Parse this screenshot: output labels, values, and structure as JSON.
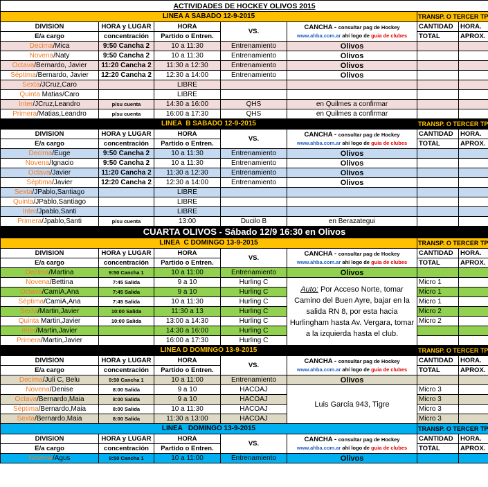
{
  "title": "ACTIVIDADES DE HOCKEY OLIVOS 2015",
  "colors": {
    "yellow": "#ffc000",
    "black": "#000000",
    "pink": "#f2dcdb",
    "blue": "#c5d9f1",
    "green": "#92d050",
    "tan": "#ddd9c4",
    "cyan": "#00b0f0",
    "division_orange": "#f07b25"
  },
  "header": {
    "division": "DIVISION",
    "ea_cargo": "E/a cargo",
    "hora_lugar": "HORA y LUGAR",
    "concentracion": "concentración",
    "hora": "HORA",
    "partido": "Partido o Entren.",
    "vs": "VS.",
    "cancha": "CANCHA - ",
    "consultar": "consultar pag de Hockey",
    "url": "www.ahba.com.ar",
    "ahi_logo": " ahí logo de ",
    "guia": "guia de clubes",
    "cantidad": "CANTIDAD",
    "total": "TOTAL",
    "hora2": "HORA.",
    "aprox": "APROX."
  },
  "transp_label": "TRANSP. O TERCER TPO",
  "cuarta": "CUARTA OLIVOS - Sábado 12/9 16:30 en Olivos",
  "sections": [
    {
      "title": "LINEA A SABADO 12-9-2015",
      "bar": "yellow",
      "alt": "pink",
      "rows": [
        {
          "div": "Decima",
          "rest": "/Mica",
          "conc": "9:50 Cancha 2",
          "hora": "10 a 11:30",
          "vs": "Entrenamiento",
          "cancha": "Olivos",
          "cant": ""
        },
        {
          "div": "Novena",
          "rest": "/Naty",
          "conc": "9:50 Cancha 2",
          "hora": "10 a 11:30",
          "vs": "Entrenamiento",
          "cancha": "Olivos",
          "cant": ""
        },
        {
          "div": "Octava",
          "rest": "/Bernardo, Javier",
          "conc": "11:20 Cancha 2",
          "hora": "11:30 a 12:30",
          "vs": "Entrenamiento",
          "cancha": "Olivos",
          "cant": ""
        },
        {
          "div": "Séptima",
          "rest": "/Bernardo, Javier",
          "conc": "12:20 Cancha 2",
          "hora": "12:30 a 14:00",
          "vs": "Entrenamiento",
          "cancha": "Olivos",
          "cant": ""
        },
        {
          "div": "Sexta",
          "rest": "/JCruz,Caro",
          "conc": "",
          "hora": "LIBRE",
          "vs": "",
          "cancha": "",
          "cant": ""
        },
        {
          "div": "Quinta",
          "rest": " Matias/Caro",
          "conc": "",
          "hora": "LIBRE",
          "vs": "",
          "cancha": "",
          "cant": ""
        },
        {
          "div": "Inter",
          "rest": "/JCruz,Leandro",
          "conc": "p/su cuenta",
          "hora": "14:30 a 16:00",
          "vs": "QHS",
          "cancha": "en Quilmes a confirmar",
          "cant": ""
        },
        {
          "div": "Primera",
          "rest": "/Matias,Leandro",
          "conc": "p/su cuenta",
          "hora": "16:00 a 17:30",
          "vs": "QHS",
          "cancha": "en Quilmes a confirmar",
          "cant": ""
        }
      ]
    },
    {
      "title": "LINEA  B SABADO 12-9-2015",
      "bar": "black",
      "alt": "blue",
      "rows": [
        {
          "div": "Decima",
          "rest": "/Euge",
          "conc": "9:50 Cancha 2",
          "hora": "10 a 11:30",
          "vs": "Entrenamiento",
          "cancha": "Olivos",
          "cant": ""
        },
        {
          "div": "Novena",
          "rest": "/Ignacio",
          "conc": "9:50 Cancha 2",
          "hora": "10 a 11:30",
          "vs": "Entrenamiento",
          "cancha": "Olivos",
          "cant": ""
        },
        {
          "div": "Octava",
          "rest": "/Javier",
          "conc": "11:20 Cancha 2",
          "hora": "11:30 a 12:30",
          "vs": "Entrenamiento",
          "cancha": "Olivos",
          "cant": ""
        },
        {
          "div": "Séptima",
          "rest": "/Javier",
          "conc": "12:20 Cancha 2",
          "hora": "12:30 a 14:00",
          "vs": "Entrenamiento",
          "cancha": "Olivos",
          "cant": ""
        },
        {
          "div": "Sexta",
          "rest": "/JPablo,Santiago",
          "conc": "",
          "hora": "LIBRE",
          "vs": "",
          "cancha": "",
          "cant": ""
        },
        {
          "div": "Quinta",
          "rest": "/JPablo,Santiago",
          "conc": "",
          "hora": "LIBRE",
          "vs": "",
          "cancha": "",
          "cant": ""
        },
        {
          "div": "Inter",
          "rest": "/Jpablo,Santi",
          "conc": "",
          "hora": "LIBRE",
          "vs": "",
          "cancha": "",
          "cant": ""
        },
        {
          "div": "Primera",
          "rest": "/Jpablo,Santi",
          "conc": "p/su cuenta",
          "hora": "13:00",
          "vs": "Ducilo B",
          "cancha": "en Berazategui",
          "cant": ""
        }
      ]
    },
    {
      "title": "LINEA  C DOMINGO 13-9-2015",
      "bar": "yellow",
      "alt": "green",
      "small_conc": true,
      "merged": {
        "start": 1,
        "span": 7,
        "auto": "Auto:",
        "text": " Por Acceso Norte, tomar Camino del Buen Ayre, bajar en la salida RN 8, por esta hacia Hurlingham hasta Av. Vergara, tomar a la izquierda hasta el club."
      },
      "rows": [
        {
          "div": "Decima",
          "rest": "/Martina",
          "conc": "9:50 Cancha 1",
          "hora": "10 a 11:00",
          "vs": "Entrenamiento",
          "cancha": "Olivos",
          "cant": ""
        },
        {
          "div": "Novena",
          "rest": "/Bettina",
          "conc": "7:45 Salida",
          "hora": "9 a 10",
          "vs": "Hurling C",
          "cant": "Micro 1"
        },
        {
          "div": "Octava",
          "rest": "/CamiA,Ana",
          "conc": "7:45 Salida",
          "hora": "9 a 10",
          "vs": "Hurling C",
          "cant": "Micro 1"
        },
        {
          "div": "Séptima",
          "rest": "/CamiA,Ana",
          "conc": "7:45 Salida",
          "hora": "10 a 11:30",
          "vs": "Hurling C",
          "cant": "Micro 1"
        },
        {
          "div": "Sexta",
          "rest": "/Martin,Javier",
          "conc": "10:00 Salida",
          "hora": "11:30 a 13",
          "vs": "Hurling C",
          "cant": "Micro 2"
        },
        {
          "div": "Quinta",
          "rest": " Martin,Javier",
          "conc": "10:00 Salida",
          "hora": "13:00 a 14:30",
          "vs": "Hurling C",
          "cant": "Micro 2"
        },
        {
          "div": "Inter",
          "rest": "/Martin,Javier",
          "conc": "",
          "hora": "14:30 a 16:00",
          "vs": "Hurling C",
          "cant": ""
        },
        {
          "div": "Primera",
          "rest": "/Martin,Javier",
          "conc": "",
          "hora": "16:00 a 17:30",
          "vs": "Hurling C",
          "cant": ""
        }
      ]
    },
    {
      "title": "LINEA D DOMINGO 13-9-2015",
      "bar": "black",
      "alt": "tan",
      "small_conc": true,
      "merged": {
        "start": 1,
        "span": 4,
        "auto": "",
        "text": "Luis García 943, Tigre"
      },
      "rows": [
        {
          "div": "Decima",
          "rest": "/Juli C, Belu",
          "conc": "9:50 Cancha 1",
          "hora": "10 a 11:00",
          "vs": "Entrenamiento",
          "cancha": "Olivos",
          "cant": ""
        },
        {
          "div": "Novena",
          "rest": "/Denise",
          "conc": "8:00 Salida",
          "hora": "9 a 10",
          "vs": "HACOAJ",
          "cant": "Micro 3"
        },
        {
          "div": "Octava",
          "rest": "/Bernardo,Maia",
          "conc": "8:00 Salida",
          "hora": "9 a 10",
          "vs": "HACOAJ",
          "cant": "Micro 3"
        },
        {
          "div": "Séptima",
          "rest": "/Bernardo,Maia",
          "conc": "8:00 Salida",
          "hora": "10 a 11:30",
          "vs": "HACOAJ",
          "cant": "Micro 3"
        },
        {
          "div": "Sexta",
          "rest": "/Bernardo,Maia",
          "conc": "8:00 Salida",
          "hora": "11:30 a 13:00",
          "vs": "HACOAJ",
          "cant": "Micro 3"
        }
      ]
    },
    {
      "title": "LINEA   DOMINGO 13-9-2015",
      "bar": "cyan",
      "alt": "cyan",
      "small_conc": true,
      "rows": [
        {
          "div": "Novena",
          "rest": "/Agus",
          "conc": "9:50 Cancha 1",
          "hora": "10 a 11:00",
          "vs": "Entrenamiento",
          "cancha": "Olivos",
          "cant": ""
        }
      ]
    }
  ]
}
